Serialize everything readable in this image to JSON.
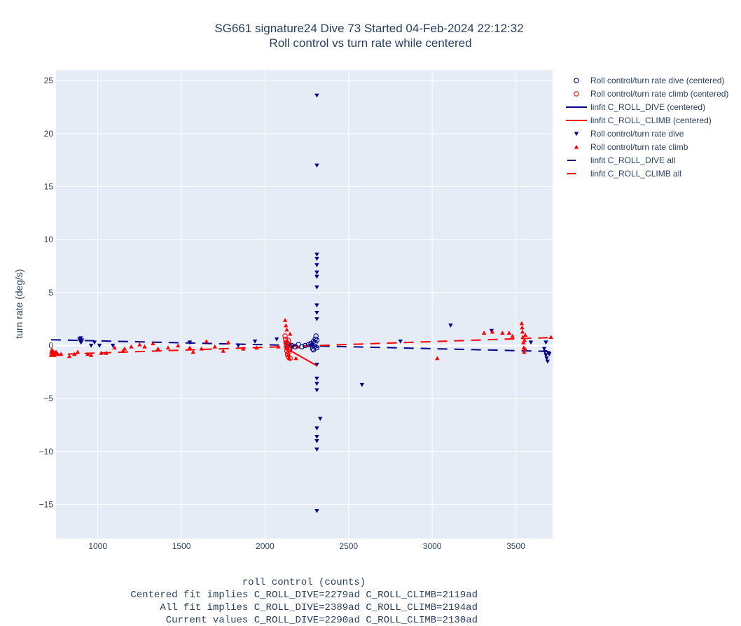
{
  "chart_data": {
    "type": "scatter",
    "title": "SG661 signature24 Dive 73 Started 04-Feb-2024 22:12:32",
    "subtitle": "Roll control vs turn rate while centered",
    "xlabel_lines": [
      "roll control (counts)",
      "Centered fit implies C_ROLL_DIVE=2279ad C_ROLL_CLIMB=2119ad",
      "All fit implies C_ROLL_DIVE=2389ad C_ROLL_CLIMB=2194ad",
      "Current values C_ROLL_DIVE=2290ad C_ROLL_CLIMB=2130ad"
    ],
    "ylabel": "turn rate (deg/s)",
    "xlim": [
      750,
      3720
    ],
    "ylim": [
      -18.2,
      26
    ],
    "x_ticks": [
      1000,
      1500,
      2000,
      2500,
      3000,
      3500
    ],
    "y_ticks": [
      -15,
      -10,
      -5,
      0,
      5,
      10,
      15,
      20,
      25
    ],
    "y_tick_labels": [
      "−15",
      "−10",
      "−5",
      "0",
      "5",
      "10",
      "15",
      "20",
      "25"
    ],
    "grid": true,
    "legend_position": "right",
    "colors": {
      "dive": "#00008b",
      "climb": "#ff0000",
      "plot_bg": "#e5ecf6",
      "grid": "#ffffff"
    },
    "series": [
      {
        "name": "Roll control/turn rate dive (centered)",
        "marker": "circle-open",
        "color": "#00008b",
        "points": [
          [
            2130,
            0.2
          ],
          [
            2135,
            -0.1
          ],
          [
            2140,
            0.1
          ],
          [
            2150,
            -0.2
          ],
          [
            2160,
            0.0
          ],
          [
            2180,
            -0.1
          ],
          [
            2200,
            0.1
          ],
          [
            2220,
            -0.1
          ],
          [
            2240,
            0.0
          ],
          [
            2260,
            0.1
          ],
          [
            2275,
            0.2
          ],
          [
            2285,
            -0.3
          ],
          [
            2290,
            0.4
          ],
          [
            2295,
            -0.1
          ],
          [
            2300,
            0.6
          ],
          [
            2305,
            0.9
          ],
          [
            2310,
            -0.2
          ],
          [
            2290,
            -0.4
          ],
          [
            2300,
            0.3
          ],
          [
            2310,
            0.5
          ]
        ]
      },
      {
        "name": "Roll control/turn rate climb (centered)",
        "marker": "circle-open",
        "color": "#ff0000",
        "points": [
          [
            2120,
            0.9
          ],
          [
            2123,
            0.6
          ],
          [
            2125,
            0.3
          ],
          [
            2127,
            0.0
          ],
          [
            2129,
            -0.2
          ],
          [
            2131,
            -0.5
          ],
          [
            2133,
            0.2
          ],
          [
            2135,
            -0.8
          ],
          [
            2137,
            -1.0
          ],
          [
            2139,
            0.5
          ],
          [
            2141,
            -0.3
          ],
          [
            2143,
            -0.6
          ],
          [
            2145,
            0.1
          ],
          [
            2147,
            -0.4
          ],
          [
            2150,
            -1.2
          ]
        ]
      },
      {
        "name": "linfit C_ROLL_DIVE (centered)",
        "line": "solid",
        "color": "#00008b",
        "points": [
          [
            2275,
            0.1
          ],
          [
            2320,
            -0.2
          ]
        ]
      },
      {
        "name": "linfit C_ROLL_CLIMB (centered)",
        "line": "solid",
        "color": "#ff0000",
        "points": [
          [
            2120,
            -0.2
          ],
          [
            2310,
            -1.9
          ]
        ]
      },
      {
        "name": "Roll control/turn rate dive",
        "marker": "triangle-down",
        "color": "#00008b",
        "points": [
          [
            890,
            0.6
          ],
          [
            895,
            0.4
          ],
          [
            898,
            0.7
          ],
          [
            900,
            0.3
          ],
          [
            905,
            0.5
          ],
          [
            960,
            0.0
          ],
          [
            980,
            0.3
          ],
          [
            1010,
            0.0
          ],
          [
            1090,
            0.0
          ],
          [
            1550,
            0.3
          ],
          [
            1840,
            0.0
          ],
          [
            1940,
            0.4
          ],
          [
            2070,
            0.6
          ],
          [
            2270,
            0.0
          ],
          [
            2285,
            0.1
          ],
          [
            2310,
            23.6
          ],
          [
            2310,
            17.0
          ],
          [
            2310,
            8.6
          ],
          [
            2310,
            8.2
          ],
          [
            2310,
            7.6
          ],
          [
            2310,
            6.9
          ],
          [
            2310,
            6.5
          ],
          [
            2310,
            5.5
          ],
          [
            2310,
            3.8
          ],
          [
            2310,
            3.1
          ],
          [
            2310,
            2.5
          ],
          [
            2310,
            -1.8
          ],
          [
            2310,
            -3.1
          ],
          [
            2310,
            -3.6
          ],
          [
            2310,
            -4.2
          ],
          [
            2310,
            -7.8
          ],
          [
            2310,
            -8.6
          ],
          [
            2310,
            -9.0
          ],
          [
            2310,
            -9.8
          ],
          [
            2310,
            -15.6
          ],
          [
            2330,
            -6.9
          ],
          [
            2580,
            -3.7
          ],
          [
            2810,
            0.4
          ],
          [
            3110,
            1.9
          ],
          [
            3355,
            1.4
          ],
          [
            3590,
            0.3
          ],
          [
            3670,
            -0.3
          ],
          [
            3675,
            -0.6
          ],
          [
            3680,
            -0.9
          ],
          [
            3685,
            -1.2
          ],
          [
            3690,
            -1.5
          ],
          [
            3695,
            -0.7
          ],
          [
            3700,
            -0.8
          ],
          [
            3680,
            0.3
          ]
        ]
      },
      {
        "name": "Roll control/turn rate climb",
        "marker": "triangle-up",
        "color": "#ff0000",
        "points": [
          [
            720,
            -0.9
          ],
          [
            722,
            -0.6
          ],
          [
            725,
            -0.4
          ],
          [
            727,
            -0.7
          ],
          [
            730,
            -0.5
          ],
          [
            733,
            -0.8
          ],
          [
            736,
            -0.6
          ],
          [
            740,
            -0.9
          ],
          [
            745,
            -0.7
          ],
          [
            750,
            -0.6
          ],
          [
            760,
            -0.8
          ],
          [
            780,
            -0.8
          ],
          [
            830,
            -1.0
          ],
          [
            860,
            -0.8
          ],
          [
            880,
            -0.6
          ],
          [
            940,
            -0.8
          ],
          [
            960,
            -0.9
          ],
          [
            1020,
            -0.7
          ],
          [
            1050,
            -0.7
          ],
          [
            1100,
            -0.2
          ],
          [
            1150,
            -0.5
          ],
          [
            1160,
            -0.3
          ],
          [
            1200,
            -0.1
          ],
          [
            1250,
            0.1
          ],
          [
            1280,
            -0.1
          ],
          [
            1330,
            0.2
          ],
          [
            1360,
            -0.3
          ],
          [
            1420,
            -0.2
          ],
          [
            1480,
            0.0
          ],
          [
            1550,
            -0.2
          ],
          [
            1570,
            -0.6
          ],
          [
            1620,
            -0.3
          ],
          [
            1650,
            0.4
          ],
          [
            1700,
            -0.1
          ],
          [
            1750,
            -0.5
          ],
          [
            1780,
            0.3
          ],
          [
            1870,
            -0.3
          ],
          [
            1950,
            -0.2
          ],
          [
            2080,
            -0.1
          ],
          [
            2120,
            2.4
          ],
          [
            2125,
            1.9
          ],
          [
            2130,
            1.5
          ],
          [
            2135,
            0.4
          ],
          [
            2140,
            -0.9
          ],
          [
            2145,
            -1.2
          ],
          [
            2150,
            1.1
          ],
          [
            2185,
            -1.2
          ],
          [
            2195,
            -0.1
          ],
          [
            3030,
            -1.2
          ],
          [
            3310,
            1.2
          ],
          [
            3360,
            1.3
          ],
          [
            3420,
            1.2
          ],
          [
            3460,
            1.2
          ],
          [
            3480,
            0.9
          ],
          [
            3535,
            2.1
          ],
          [
            3538,
            1.7
          ],
          [
            3540,
            1.3
          ],
          [
            3542,
            0.8
          ],
          [
            3545,
            0.3
          ],
          [
            3547,
            -0.2
          ],
          [
            3550,
            -0.6
          ],
          [
            3552,
            0.5
          ],
          [
            3555,
            -0.3
          ],
          [
            3557,
            1.0
          ],
          [
            3710,
            0.8
          ]
        ]
      },
      {
        "name": "linfit C_ROLL_DIVE all",
        "line": "dash",
        "color": "#00008b",
        "points": [
          [
            720,
            0.55
          ],
          [
            3700,
            -0.55
          ]
        ]
      },
      {
        "name": "linfit C_ROLL_CLIMB all",
        "line": "dash",
        "color": "#ff0000",
        "points": [
          [
            720,
            -0.85
          ],
          [
            3700,
            0.75
          ]
        ]
      }
    ]
  }
}
